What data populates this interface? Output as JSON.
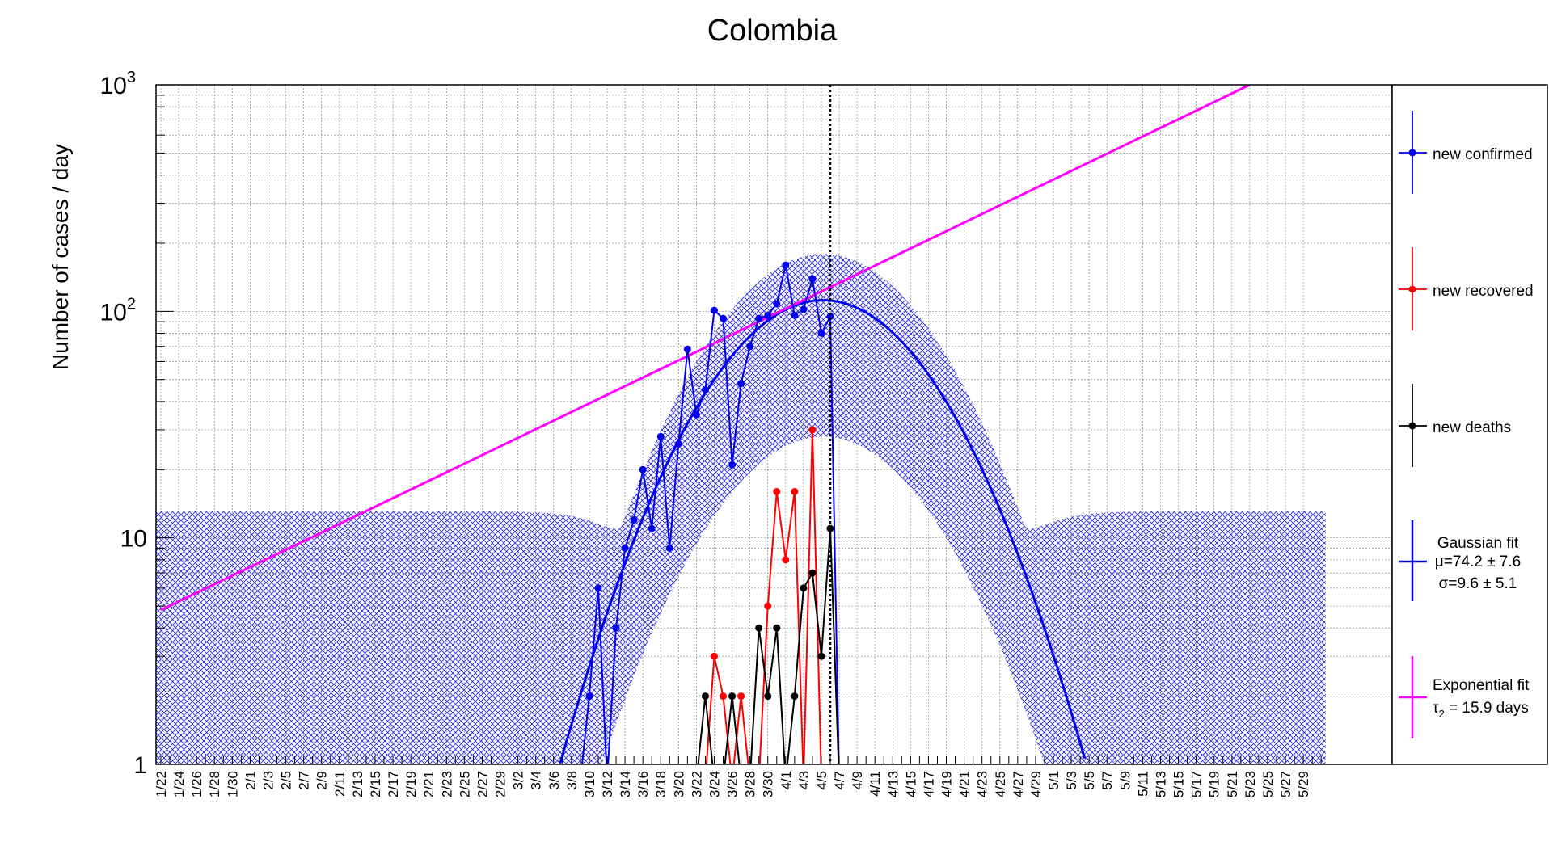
{
  "chart_data": {
    "type": "line",
    "title": "Colombia",
    "ylabel": "Number of cases / day",
    "xlabel": "",
    "y_scale": "log",
    "ylim": [
      1,
      1000
    ],
    "grid": true,
    "x_days": [
      "1/22",
      "1/23",
      "1/24",
      "1/25",
      "1/26",
      "1/27",
      "1/28",
      "1/29",
      "1/30",
      "1/31",
      "2/1",
      "2/2",
      "2/3",
      "2/4",
      "2/5",
      "2/6",
      "2/7",
      "2/8",
      "2/9",
      "2/10",
      "2/11",
      "2/12",
      "2/13",
      "2/14",
      "2/15",
      "2/16",
      "2/17",
      "2/18",
      "2/19",
      "2/20",
      "2/21",
      "2/22",
      "2/23",
      "2/24",
      "2/25",
      "2/26",
      "2/27",
      "2/28",
      "2/29",
      "3/1",
      "3/2",
      "3/3",
      "3/4",
      "3/5",
      "3/6",
      "3/7",
      "3/8",
      "3/9",
      "3/10",
      "3/11",
      "3/12",
      "3/13",
      "3/14",
      "3/15",
      "3/16",
      "3/17",
      "3/18",
      "3/19",
      "3/20",
      "3/21",
      "3/22",
      "3/23",
      "3/24",
      "3/25",
      "3/26",
      "3/27",
      "3/28",
      "3/29",
      "3/30",
      "3/31",
      "4/1",
      "4/2",
      "4/3",
      "4/4",
      "4/5",
      "4/6",
      "4/7",
      "4/8",
      "4/9",
      "4/10",
      "4/11",
      "4/12",
      "4/13",
      "4/14",
      "4/15",
      "4/16",
      "4/17",
      "4/18",
      "4/19",
      "4/20",
      "4/21",
      "4/22",
      "4/23",
      "4/24",
      "4/25",
      "4/26",
      "4/27",
      "4/28",
      "4/29",
      "4/30",
      "5/1",
      "5/2",
      "5/3",
      "5/4",
      "5/5",
      "5/6",
      "5/7",
      "5/8",
      "5/9",
      "5/10",
      "5/11",
      "5/12",
      "5/13",
      "5/14",
      "5/15",
      "5/16",
      "5/17",
      "5/18",
      "5/19",
      "5/20",
      "5/21",
      "5/22",
      "5/23",
      "5/24",
      "5/25",
      "5/26",
      "5/27",
      "5/28",
      "5/29",
      "5/30",
      "5/31"
    ],
    "x_tick_labels": [
      "1/22",
      "1/24",
      "1/26",
      "1/28",
      "1/30",
      "2/1",
      "2/3",
      "2/5",
      "2/7",
      "2/9",
      "2/11",
      "2/13",
      "2/15",
      "2/17",
      "2/19",
      "2/21",
      "2/23",
      "2/25",
      "2/27",
      "2/29",
      "3/2",
      "3/4",
      "3/6",
      "3/8",
      "3/10",
      "3/12",
      "3/14",
      "3/16",
      "3/18",
      "3/20",
      "3/22",
      "3/24",
      "3/26",
      "3/28",
      "3/30",
      "4/1",
      "4/3",
      "4/5",
      "4/7",
      "4/9",
      "4/11",
      "4/13",
      "4/15",
      "4/17",
      "4/19",
      "4/21",
      "4/23",
      "4/25",
      "4/27",
      "4/29",
      "5/1",
      "5/3",
      "5/5",
      "5/7",
      "5/9",
      "5/11",
      "5/13",
      "5/15",
      "5/17",
      "5/19",
      "5/21",
      "5/23",
      "5/25",
      "5/27",
      "5/29"
    ],
    "y_tick_labels": [
      "1",
      "10",
      "10^2",
      "10^3"
    ],
    "vertical_marker_date": "4/6",
    "series": [
      {
        "name": "new confirmed",
        "color": "#0000ee",
        "points": [
          [
            "3/9",
            0
          ],
          [
            "3/10",
            2
          ],
          [
            "3/11",
            6
          ],
          [
            "3/12",
            0
          ],
          [
            "3/13",
            4
          ],
          [
            "3/14",
            9
          ],
          [
            "3/15",
            12
          ],
          [
            "3/16",
            20
          ],
          [
            "3/17",
            11
          ],
          [
            "3/18",
            28
          ],
          [
            "3/19",
            9
          ],
          [
            "3/20",
            26
          ],
          [
            "3/21",
            68
          ],
          [
            "3/22",
            35
          ],
          [
            "3/23",
            45
          ],
          [
            "3/24",
            101
          ],
          [
            "3/25",
            93
          ],
          [
            "3/26",
            21
          ],
          [
            "3/27",
            48
          ],
          [
            "3/28",
            70
          ],
          [
            "3/29",
            93
          ],
          [
            "3/30",
            96
          ],
          [
            "3/31",
            108
          ],
          [
            "4/1",
            160
          ],
          [
            "4/2",
            96
          ],
          [
            "4/3",
            102
          ],
          [
            "4/4",
            139
          ],
          [
            "4/5",
            80
          ],
          [
            "4/6",
            95
          ],
          [
            "4/7",
            0
          ]
        ]
      },
      {
        "name": "new recovered",
        "color": "#ff0000",
        "points": [
          [
            "3/23",
            0
          ],
          [
            "3/24",
            3
          ],
          [
            "3/25",
            2
          ],
          [
            "3/26",
            0
          ],
          [
            "3/27",
            2
          ],
          [
            "3/28",
            0
          ],
          [
            "3/29",
            0
          ],
          [
            "3/30",
            5
          ],
          [
            "3/31",
            16
          ],
          [
            "4/1",
            8
          ],
          [
            "4/2",
            16
          ],
          [
            "4/3",
            0
          ],
          [
            "4/4",
            30
          ],
          [
            "4/5",
            0
          ],
          [
            "4/6",
            0
          ]
        ]
      },
      {
        "name": "new deaths",
        "color": "#000000",
        "points": [
          [
            "3/22",
            0
          ],
          [
            "3/23",
            2
          ],
          [
            "3/24",
            0
          ],
          [
            "3/25",
            0
          ],
          [
            "3/26",
            2
          ],
          [
            "3/27",
            0
          ],
          [
            "3/28",
            0
          ],
          [
            "3/29",
            4
          ],
          [
            "3/30",
            2
          ],
          [
            "3/31",
            4
          ],
          [
            "4/1",
            0
          ],
          [
            "4/2",
            2
          ],
          [
            "4/3",
            6
          ],
          [
            "4/4",
            7
          ],
          [
            "4/5",
            3
          ],
          [
            "4/6",
            11
          ],
          [
            "4/7",
            0
          ]
        ]
      }
    ],
    "fits": [
      {
        "name": "Gaussian fit",
        "color": "#0000ee",
        "mu_label": "μ=74.2 ± 7.6",
        "sigma_label": "σ=9.6 ± 5.1",
        "mu_day": 74.2,
        "sigma_day": 9.6,
        "peak": 112
      },
      {
        "name": "Exponential fit",
        "color": "#ff00ff",
        "tau_label": "τ",
        "tau_sub": "2",
        "tau_rest": " = 15.9 days",
        "start_date": "1/22",
        "start_value": 4.8,
        "end_date": "5/23",
        "end_value": 1000
      }
    ],
    "gaussian_band": {
      "color": "#0000cc",
      "pattern": "crosshatch",
      "baseline": 14
    },
    "legend": {
      "position": "right",
      "entries": [
        "new confirmed",
        "new recovered",
        "new deaths",
        "Gaussian fit",
        "Exponential fit"
      ]
    }
  }
}
